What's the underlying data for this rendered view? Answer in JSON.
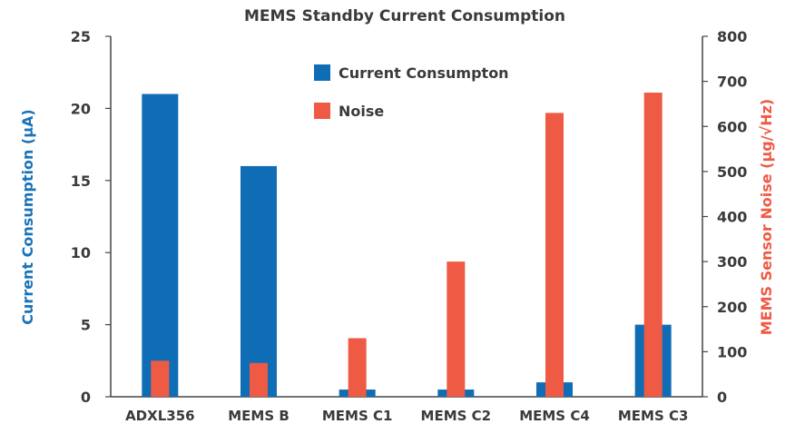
{
  "chart_data": {
    "type": "bar",
    "title": "MEMS Standby Current Consumption",
    "categories": [
      "ADXL356",
      "MEMS B",
      "MEMS C1",
      "MEMS C2",
      "MEMS C4",
      "MEMS C3"
    ],
    "series": [
      {
        "name": "Current Consumpton",
        "axis": "left",
        "color": "#0f6db6",
        "values": [
          21,
          16,
          0.5,
          0.5,
          1,
          5
        ]
      },
      {
        "name": "Noise",
        "axis": "right",
        "color": "#ef5a45",
        "values": [
          80,
          75,
          130,
          300,
          630,
          675
        ]
      }
    ],
    "y_left": {
      "label": "Current Consumption (μA)",
      "ylim": [
        0,
        25
      ],
      "ticks": [
        "0",
        "5",
        "10",
        "15",
        "20",
        "25"
      ],
      "color": "#1a73b8"
    },
    "y_right": {
      "label": "MEMS Sensor Noise (μg/√Hz)",
      "ylim": [
        0,
        800
      ],
      "ticks": [
        "0",
        "100",
        "200",
        "300",
        "400",
        "500",
        "600",
        "700",
        "800"
      ],
      "color": "#ef5a45"
    },
    "grid": false,
    "legend_position": "top-center"
  }
}
